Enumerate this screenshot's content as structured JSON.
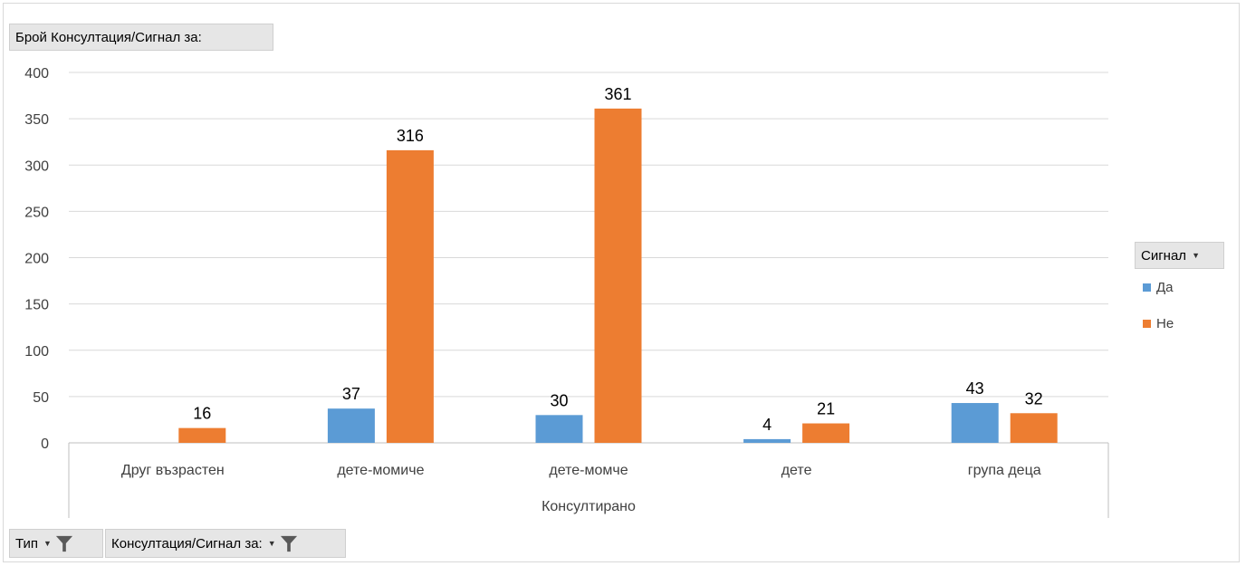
{
  "header": {
    "value_field_button": "Брой Консултация/Сигнал за:"
  },
  "legend": {
    "title": "Сигнал"
  },
  "filters": [
    {
      "label": "Тип"
    },
    {
      "label": "Консултация/Сигнал за:"
    }
  ],
  "colors": {
    "Да": "#5b9bd5",
    "Не": "#ed7d31",
    "grid": "#d9d9d9",
    "axis": "#bfbfbf"
  },
  "chart_data": {
    "type": "bar",
    "xlabel": "Консултирано",
    "ylabel": "",
    "ylim": [
      0,
      400
    ],
    "yticks": [
      0,
      50,
      100,
      150,
      200,
      250,
      300,
      350,
      400
    ],
    "grid": true,
    "legend_position": "right",
    "categories": [
      "Друг възрастен",
      "дете-момиче",
      "дете-момче",
      "дете",
      "група деца"
    ],
    "series": [
      {
        "name": "Да",
        "values": [
          null,
          37,
          30,
          4,
          43
        ]
      },
      {
        "name": "Не",
        "values": [
          16,
          316,
          361,
          21,
          32
        ]
      }
    ]
  }
}
